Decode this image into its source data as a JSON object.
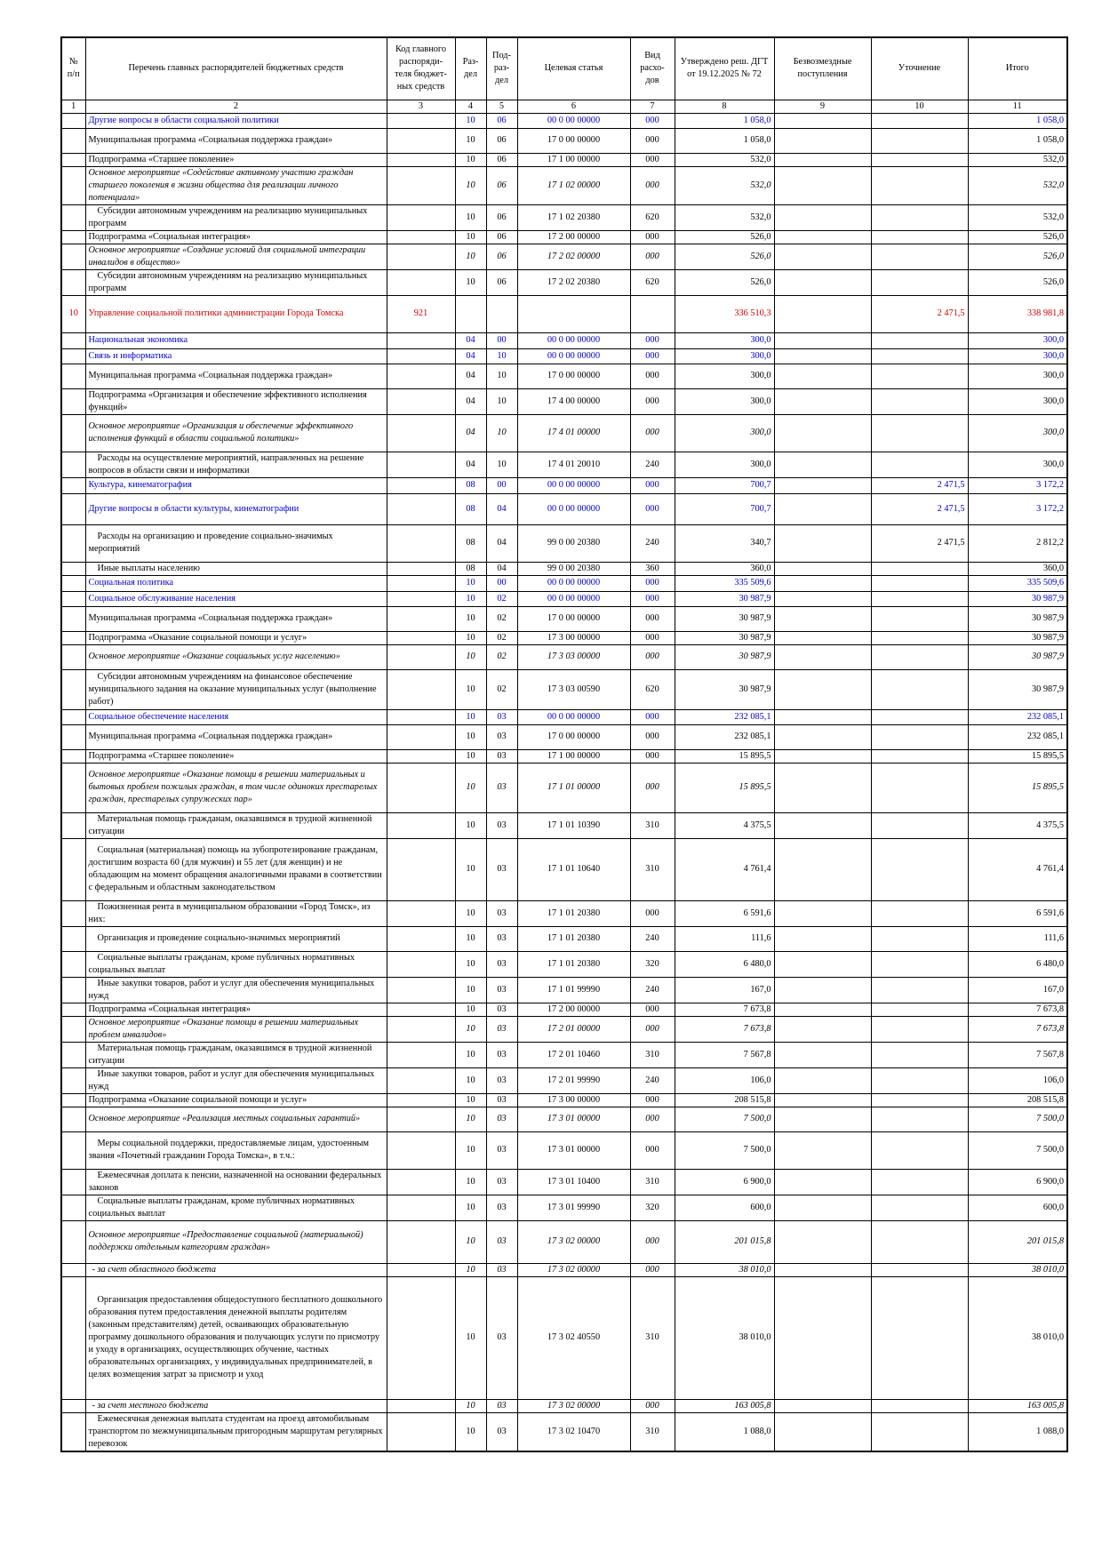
{
  "header": {
    "no": "№ п/п",
    "name": "Перечень главных распорядителей бюджетных средств",
    "code": "Код главного распоряди- теля бюджет- ных средств",
    "section": "Раз- дел",
    "subsection": "Под- раз- дел",
    "article": "Целевая статья",
    "kind": "Вид расхо- дов",
    "approved": "Утверждено реш. ДГТ от 19.12.2025 № 72",
    "free": "Безвозмездные поступления",
    "adjustment": "Уточнение",
    "total": "Итого"
  },
  "colnums": [
    "1",
    "2",
    "3",
    "4",
    "5",
    "6",
    "7",
    "8",
    "9",
    "10",
    "11"
  ],
  "rows": [
    {
      "style": "blue",
      "h": 17,
      "num": "",
      "name": "Другие вопросы в области социальной политики",
      "code": "",
      "sec": "10",
      "sub": "06",
      "art": "00 0 00 00000",
      "kind": "000",
      "appr": "1 058,0",
      "free": "",
      "adj": "",
      "total": "1 058,0"
    },
    {
      "style": "bold",
      "h": 28,
      "num": "",
      "name": "Муниципальная программа «Социальная поддержка граждан»",
      "code": "",
      "sec": "10",
      "sub": "06",
      "art": "17 0 00 00000",
      "kind": "000",
      "appr": "1 058,0",
      "free": "",
      "adj": "",
      "total": "1 058,0"
    },
    {
      "style": "bold",
      "h": 14,
      "num": "",
      "name": "Подпрограмма «Старшее поколение»",
      "code": "",
      "sec": "10",
      "sub": "06",
      "art": "17 1 00 00000",
      "kind": "000",
      "appr": "532,0",
      "free": "",
      "adj": "",
      "total": "532,0"
    },
    {
      "style": "bi",
      "h": 42,
      "num": "",
      "name": "Основное мероприятие «Содействие активному участию граждан старшего поколения в жизни общества для реализации личного потенциала»",
      "code": "",
      "sec": "10",
      "sub": "06",
      "art": "17 1 02 00000",
      "kind": "000",
      "appr": "532,0",
      "free": "",
      "adj": "",
      "total": "532,0"
    },
    {
      "style": "plain",
      "h": 28,
      "num": "",
      "name": "Субсидии автономным учреждениям на реализацию муниципальных программ",
      "code": "",
      "sec": "10",
      "sub": "06",
      "art": "17 1 02 20380",
      "kind": "620",
      "appr": "532,0",
      "free": "",
      "adj": "",
      "total": "532,0"
    },
    {
      "style": "bold",
      "h": 14,
      "num": "",
      "name": "Подпрограмма «Социальная интеграция»",
      "code": "",
      "sec": "10",
      "sub": "06",
      "art": "17 2 00 00000",
      "kind": "000",
      "appr": "526,0",
      "free": "",
      "adj": "",
      "total": "526,0"
    },
    {
      "style": "bi",
      "h": 28,
      "num": "",
      "name": "Основное мероприятие «Создание условий для социальной интеграции инвалидов в общество»",
      "code": "",
      "sec": "10",
      "sub": "06",
      "art": "17 2 02 00000",
      "kind": "000",
      "appr": "526,0",
      "free": "",
      "adj": "",
      "total": "526,0"
    },
    {
      "style": "plain",
      "h": 28,
      "num": "",
      "name": "Субсидии автономным учреждениям на реализацию муниципальных программ",
      "code": "",
      "sec": "10",
      "sub": "06",
      "art": "17 2 02 20380",
      "kind": "620",
      "appr": "526,0",
      "free": "",
      "adj": "",
      "total": "526,0"
    },
    {
      "style": "red",
      "h": 42,
      "num": "10",
      "name": "Управление социальной политики администрации Города Томска",
      "code": "921",
      "sec": "",
      "sub": "",
      "art": "",
      "kind": "",
      "appr": "336 510,3",
      "free": "",
      "adj": "2 471,5",
      "total": "338 981,8"
    },
    {
      "style": "blue",
      "h": 18,
      "num": "",
      "name": "Национальная экономика",
      "code": "",
      "sec": "04",
      "sub": "00",
      "art": "00 0 00 00000",
      "kind": "000",
      "appr": "300,0",
      "free": "",
      "adj": "",
      "total": "300,0"
    },
    {
      "style": "blue",
      "h": 17,
      "num": "",
      "name": "Связь и информатика",
      "code": "",
      "sec": "04",
      "sub": "10",
      "art": "00 0 00 00000",
      "kind": "000",
      "appr": "300,0",
      "free": "",
      "adj": "",
      "total": "300,0"
    },
    {
      "style": "bold",
      "h": 28,
      "num": "",
      "name": "Муниципальная программа «Социальная поддержка граждан»",
      "code": "",
      "sec": "04",
      "sub": "10",
      "art": "17 0 00 00000",
      "kind": "000",
      "appr": "300,0",
      "free": "",
      "adj": "",
      "total": "300,0"
    },
    {
      "style": "bold",
      "h": 28,
      "num": "",
      "name": "Подпрограмма «Организация и обеспечение эффективного исполнения функций»",
      "code": "",
      "sec": "04",
      "sub": "10",
      "art": "17 4 00 00000",
      "kind": "000",
      "appr": "300,0",
      "free": "",
      "adj": "",
      "total": "300,0"
    },
    {
      "style": "bi",
      "h": 42,
      "num": "",
      "name": "Основное мероприятие «Организация и обеспечение эффективного исполнения функций в области социальной политики»",
      "code": "",
      "sec": "04",
      "sub": "10",
      "art": "17 4 01 00000",
      "kind": "000",
      "appr": "300,0",
      "free": "",
      "adj": "",
      "total": "300,0"
    },
    {
      "style": "plain",
      "h": 28,
      "num": "",
      "name": "Расходы на осуществление мероприятий, направленных на решение вопросов в области связи и информатики",
      "code": "",
      "sec": "04",
      "sub": "10",
      "art": "17 4 01 20010",
      "kind": "240",
      "appr": "300,0",
      "free": "",
      "adj": "",
      "total": "300,0"
    },
    {
      "style": "blue",
      "h": 18,
      "num": "",
      "name": "Культура, кинематография",
      "code": "",
      "sec": "08",
      "sub": "00",
      "art": "00 0 00 00000",
      "kind": "000",
      "appr": "700,7",
      "free": "",
      "adj": "2 471,5",
      "total": "3 172,2"
    },
    {
      "style": "blue",
      "h": 35,
      "num": "",
      "name": "Другие вопросы в области культуры, кинематографии",
      "code": "",
      "sec": "08",
      "sub": "04",
      "art": "00 0 00 00000",
      "kind": "000",
      "appr": "700,7",
      "free": "",
      "adj": "2 471,5",
      "total": "3 172,2"
    },
    {
      "style": "plain",
      "h": 42,
      "num": "",
      "name": "Расходы на организацию и проведение социально-значимых мероприятий",
      "code": "",
      "sec": "08",
      "sub": "04",
      "art": "99 0 00 20380",
      "kind": "240",
      "appr": "340,7",
      "free": "",
      "adj": "2 471,5",
      "total": "2 812,2"
    },
    {
      "style": "plain",
      "h": 14,
      "num": "",
      "name": "Иные выплаты населению",
      "code": "",
      "sec": "08",
      "sub": "04",
      "art": "99 0 00 20380",
      "kind": "360",
      "appr": "360,0",
      "free": "",
      "adj": "",
      "total": "360,0"
    },
    {
      "style": "blue",
      "h": 18,
      "num": "",
      "name": "Социальная политика",
      "code": "",
      "sec": "10",
      "sub": "00",
      "art": "00 0 00 00000",
      "kind": "000",
      "appr": "335 509,6",
      "free": "",
      "adj": "",
      "total": "335 509,6"
    },
    {
      "style": "blue",
      "h": 17,
      "num": "",
      "name": "Социальное обслуживание населения",
      "code": "",
      "sec": "10",
      "sub": "02",
      "art": "00 0 00 00000",
      "kind": "000",
      "appr": "30 987,9",
      "free": "",
      "adj": "",
      "total": "30 987,9"
    },
    {
      "style": "bold",
      "h": 28,
      "num": "",
      "name": "Муниципальная программа «Социальная поддержка граждан»",
      "code": "",
      "sec": "10",
      "sub": "02",
      "art": "17 0 00 00000",
      "kind": "000",
      "appr": "30 987,9",
      "free": "",
      "adj": "",
      "total": "30 987,9"
    },
    {
      "style": "bold",
      "h": 14,
      "num": "",
      "name": "Подпрограмма «Оказание социальной помощи и услуг»",
      "code": "",
      "sec": "10",
      "sub": "02",
      "art": "17 3 00 00000",
      "kind": "000",
      "appr": "30 987,9",
      "free": "",
      "adj": "",
      "total": "30 987,9"
    },
    {
      "style": "bi",
      "h": 28,
      "num": "",
      "name": "Основное мероприятие «Оказание социальных услуг населению»",
      "code": "",
      "sec": "10",
      "sub": "02",
      "art": "17 3 03 00000",
      "kind": "000",
      "appr": "30 987,9",
      "free": "",
      "adj": "",
      "total": "30 987,9"
    },
    {
      "style": "plain",
      "h": 45,
      "num": "",
      "name": "Субсидии автономным учреждениям на финансовое обеспечение муниципального задания на оказание муниципальных услуг (выполнение работ)",
      "code": "",
      "sec": "10",
      "sub": "02",
      "art": "17 3 03 00590",
      "kind": "620",
      "appr": "30 987,9",
      "free": "",
      "adj": "",
      "total": "30 987,9"
    },
    {
      "style": "blue",
      "h": 17,
      "num": "",
      "name": "Социальное обеспечение населения",
      "code": "",
      "sec": "10",
      "sub": "03",
      "art": "00 0 00 00000",
      "kind": "000",
      "appr": "232 085,1",
      "free": "",
      "adj": "",
      "total": "232 085,1"
    },
    {
      "style": "bold",
      "h": 28,
      "num": "",
      "name": "Муниципальная программа «Социальная поддержка граждан»",
      "code": "",
      "sec": "10",
      "sub": "03",
      "art": "17 0 00 00000",
      "kind": "000",
      "appr": "232 085,1",
      "free": "",
      "adj": "",
      "total": "232 085,1"
    },
    {
      "style": "bold",
      "h": 14,
      "num": "",
      "name": "Подпрограмма «Старшее поколение»",
      "code": "",
      "sec": "10",
      "sub": "03",
      "art": "17 1 00 00000",
      "kind": "000",
      "appr": "15 895,5",
      "free": "",
      "adj": "",
      "total": "15 895,5"
    },
    {
      "style": "bi",
      "h": 56,
      "num": "",
      "name": "Основное мероприятие «Оказание помощи в решении материальных и бытовых проблем пожилых граждан, в том числе одиноких престарелых граждан, престарелых супружеских пар»",
      "code": "",
      "sec": "10",
      "sub": "03",
      "art": "17 1 01 00000",
      "kind": "000",
      "appr": "15 895,5",
      "free": "",
      "adj": "",
      "total": "15 895,5"
    },
    {
      "style": "plain",
      "h": 28,
      "num": "",
      "name": "Материальная помощь гражданам, оказавшимся в трудной жизненной ситуации",
      "code": "",
      "sec": "10",
      "sub": "03",
      "art": "17 1 01 10390",
      "kind": "310",
      "appr": "4 375,5",
      "free": "",
      "adj": "",
      "total": "4 375,5"
    },
    {
      "style": "plain",
      "h": 70,
      "num": "",
      "name": "Социальная (материальная) помощь на зубопротезирование гражданам, достигшим возраста 60 (для мужчин) и 55 лет (для женщин) и не обладающим на момент обращения аналогичными правами в соответствии с федеральным и областным законодательством",
      "code": "",
      "sec": "10",
      "sub": "03",
      "art": "17 1 01 10640",
      "kind": "310",
      "appr": "4 761,4",
      "free": "",
      "adj": "",
      "total": "4 761,4"
    },
    {
      "style": "plain",
      "h": 28,
      "num": "",
      "name": "Пожизненная рента в муниципальном образовании «Город Томск», из них:",
      "code": "",
      "sec": "10",
      "sub": "03",
      "art": "17 1 01 20380",
      "kind": "000",
      "appr": "6 591,6",
      "free": "",
      "adj": "",
      "total": "6 591,6"
    },
    {
      "style": "plain",
      "h": 28,
      "num": "",
      "name": "Организация и проведение социально-значимых мероприятий",
      "code": "",
      "sec": "10",
      "sub": "03",
      "art": "17 1 01 20380",
      "kind": "240",
      "appr": "111,6",
      "free": "",
      "adj": "",
      "total": "111,6"
    },
    {
      "style": "plain",
      "h": 28,
      "num": "",
      "name": "Социальные выплаты гражданам, кроме публичных нормативных социальных выплат",
      "code": "",
      "sec": "10",
      "sub": "03",
      "art": "17 1 01 20380",
      "kind": "320",
      "appr": "6 480,0",
      "free": "",
      "adj": "",
      "total": "6 480,0"
    },
    {
      "style": "plain",
      "h": 28,
      "num": "",
      "name": "Иные закупки товаров, работ и услуг для обеспечения муниципальных нужд",
      "code": "",
      "sec": "10",
      "sub": "03",
      "art": "17 1 01 99990",
      "kind": "240",
      "appr": "167,0",
      "free": "",
      "adj": "",
      "total": "167,0"
    },
    {
      "style": "bold",
      "h": 14,
      "num": "",
      "name": "Подпрограмма «Социальная интеграция»",
      "code": "",
      "sec": "10",
      "sub": "03",
      "art": "17 2 00 00000",
      "kind": "000",
      "appr": "7 673,8",
      "free": "",
      "adj": "",
      "total": "7 673,8"
    },
    {
      "style": "bi",
      "h": 28,
      "num": "",
      "name": "Основное мероприятие «Оказание помощи в решении материальных проблем инвалидов»",
      "code": "",
      "sec": "10",
      "sub": "03",
      "art": "17 2 01 00000",
      "kind": "000",
      "appr": "7 673,8",
      "free": "",
      "adj": "",
      "total": "7 673,8"
    },
    {
      "style": "plain",
      "h": 28,
      "num": "",
      "name": "Материальная помощь гражданам, оказавшимся в трудной жизненной ситуации",
      "code": "",
      "sec": "10",
      "sub": "03",
      "art": "17 2 01 10460",
      "kind": "310",
      "appr": "7 567,8",
      "free": "",
      "adj": "",
      "total": "7 567,8"
    },
    {
      "style": "plain",
      "h": 28,
      "num": "",
      "name": "Иные закупки товаров, работ и услуг для обеспечения муниципальных нужд",
      "code": "",
      "sec": "10",
      "sub": "03",
      "art": "17 2 01 99990",
      "kind": "240",
      "appr": "106,0",
      "free": "",
      "adj": "",
      "total": "106,0"
    },
    {
      "style": "bold",
      "h": 14,
      "num": "",
      "name": "Подпрограмма «Оказание социальной помощи и услуг»",
      "code": "",
      "sec": "10",
      "sub": "03",
      "art": "17 3 00 00000",
      "kind": "000",
      "appr": "208 515,8",
      "free": "",
      "adj": "",
      "total": "208 515,8"
    },
    {
      "style": "bi",
      "h": 28,
      "num": "",
      "name": "Основное мероприятие «Реализация местных социальных гарантий»",
      "code": "",
      "sec": "10",
      "sub": "03",
      "art": "17 3 01 00000",
      "kind": "000",
      "appr": "7 500,0",
      "free": "",
      "adj": "",
      "total": "7 500,0"
    },
    {
      "style": "plain",
      "h": 42,
      "num": "",
      "name": "Меры социальной поддержки, предоставляемые лицам, удостоенным звания «Почетный гражданин Города Томска», в т.ч.:",
      "code": "",
      "sec": "10",
      "sub": "03",
      "art": "17 3 01 00000",
      "kind": "000",
      "appr": "7 500,0",
      "free": "",
      "adj": "",
      "total": "7 500,0"
    },
    {
      "style": "plain",
      "h": 28,
      "num": "",
      "name": "Ежемесячная доплата к пенсии, назначенной на основании федеральных законов",
      "code": "",
      "sec": "10",
      "sub": "03",
      "art": "17 3 01 10400",
      "kind": "310",
      "appr": "6 900,0",
      "free": "",
      "adj": "",
      "total": "6 900,0"
    },
    {
      "style": "plain",
      "h": 28,
      "num": "",
      "name": "Социальные выплаты гражданам, кроме публичных нормативных социальных выплат",
      "code": "",
      "sec": "10",
      "sub": "03",
      "art": "17 3 01 99990",
      "kind": "320",
      "appr": "600,0",
      "free": "",
      "adj": "",
      "total": "600,0"
    },
    {
      "style": "bi",
      "h": 48,
      "num": "",
      "name": "Основное мероприятие «Предоставление социальной (материальной) поддержки отдельным категориям граждан»",
      "code": "",
      "sec": "10",
      "sub": "03",
      "art": "17 3 02 00000",
      "kind": "000",
      "appr": "201 015,8",
      "free": "",
      "adj": "",
      "total": "201 015,8"
    },
    {
      "style": "it",
      "h": 14,
      "num": "",
      "name": "- за счет областного бюджета",
      "code": "",
      "sec": "10",
      "sub": "03",
      "art": "17 3 02 00000",
      "kind": "000",
      "appr": "38 010,0",
      "free": "",
      "adj": "",
      "total": "38 010,0"
    },
    {
      "style": "plain",
      "h": 138,
      "num": "",
      "name": "Организация предоставления общедоступного бесплатного дошкольного образования путем предоставления денежной выплаты родителям (законным представителям) детей, осваивающих образовательную программу дошкольного образования и получающих услуги по присмотру и уходу в организациях, осуществляющих обучение, частных образовательных организациях, у индивидуальных предпринимателей, в целях возмещения затрат за присмотр и уход",
      "code": "",
      "sec": "10",
      "sub": "03",
      "art": "17 3 02 40550",
      "kind": "310",
      "appr": "38 010,0",
      "free": "",
      "adj": "",
      "total": "38 010,0"
    },
    {
      "style": "it",
      "h": 14,
      "num": "",
      "name": "- за счет местного бюджета",
      "code": "",
      "sec": "10",
      "sub": "03",
      "art": "17 3 02 00000",
      "kind": "000",
      "appr": "163 005,8",
      "free": "",
      "adj": "",
      "total": "163 005,8"
    },
    {
      "style": "plain",
      "h": 42,
      "num": "",
      "name": "Ежемесячная денежная выплата студентам на проезд автомобильным транспортом по межмуниципальным пригородным маршрутам регулярных перевозок",
      "code": "",
      "sec": "10",
      "sub": "03",
      "art": "17 3 02 10470",
      "kind": "310",
      "appr": "1 088,0",
      "free": "",
      "adj": "",
      "total": "1 088,0"
    }
  ]
}
